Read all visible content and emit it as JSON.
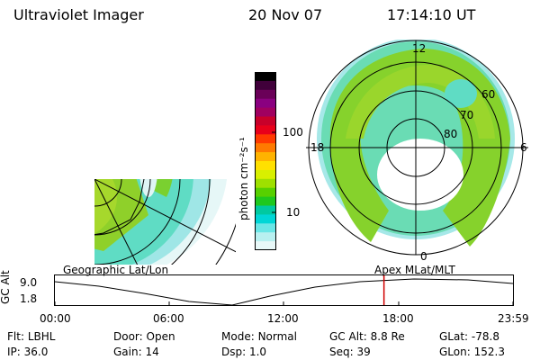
{
  "header": {
    "instrument": "Ultraviolet Imager",
    "date": "20 Nov 07",
    "time": "17:14:10 UT"
  },
  "left_panel": {
    "label": "Geographic Lat/Lon",
    "projection": "geographic"
  },
  "right_panel": {
    "label": "Apex MLat/MLT",
    "mlt_labels": {
      "top": "12",
      "left": "18",
      "right": "6",
      "bottom": "0"
    },
    "lat_labels": [
      "60",
      "70",
      "80"
    ]
  },
  "colorbar": {
    "unit_label": "photon cm⁻²s⁻¹",
    "tick_labels": [
      "100",
      "10"
    ],
    "colors": [
      "#000000",
      "#40003a",
      "#6a0058",
      "#8a0080",
      "#a00060",
      "#c8002a",
      "#e8001a",
      "#ff3a00",
      "#ff7a00",
      "#ffb300",
      "#ffe000",
      "#d8f000",
      "#9ee000",
      "#57d000",
      "#1ec81e",
      "#00c9a0",
      "#00d6d6",
      "#6ae6e6",
      "#b8f0f0",
      "#e8f8f8"
    ]
  },
  "altitude_plot": {
    "ylabel": "GC Alt",
    "y_ticks": [
      "9.0",
      "1.8"
    ],
    "x_ticks": [
      "00:00",
      "06:00",
      "12:00",
      "18:00",
      "23:59"
    ],
    "current_time_hours": 17.24
  },
  "info": {
    "row1": [
      {
        "key": "Flt:",
        "value": "LBHL"
      },
      {
        "key": "Door:",
        "value": "Open"
      },
      {
        "key": "Mode:",
        "value": "Normal"
      },
      {
        "key": "GC Alt:",
        "value": "8.8 Re"
      },
      {
        "key": "GLat:",
        "value": "-78.8"
      }
    ],
    "row2": [
      {
        "key": "IP:",
        "value": "36.0"
      },
      {
        "key": "Gain:",
        "value": "14"
      },
      {
        "key": "Dsp:",
        "value": "1.0"
      },
      {
        "key": "Seq:",
        "value": "39"
      },
      {
        "key": "GLon:",
        "value": "152.3"
      }
    ]
  }
}
